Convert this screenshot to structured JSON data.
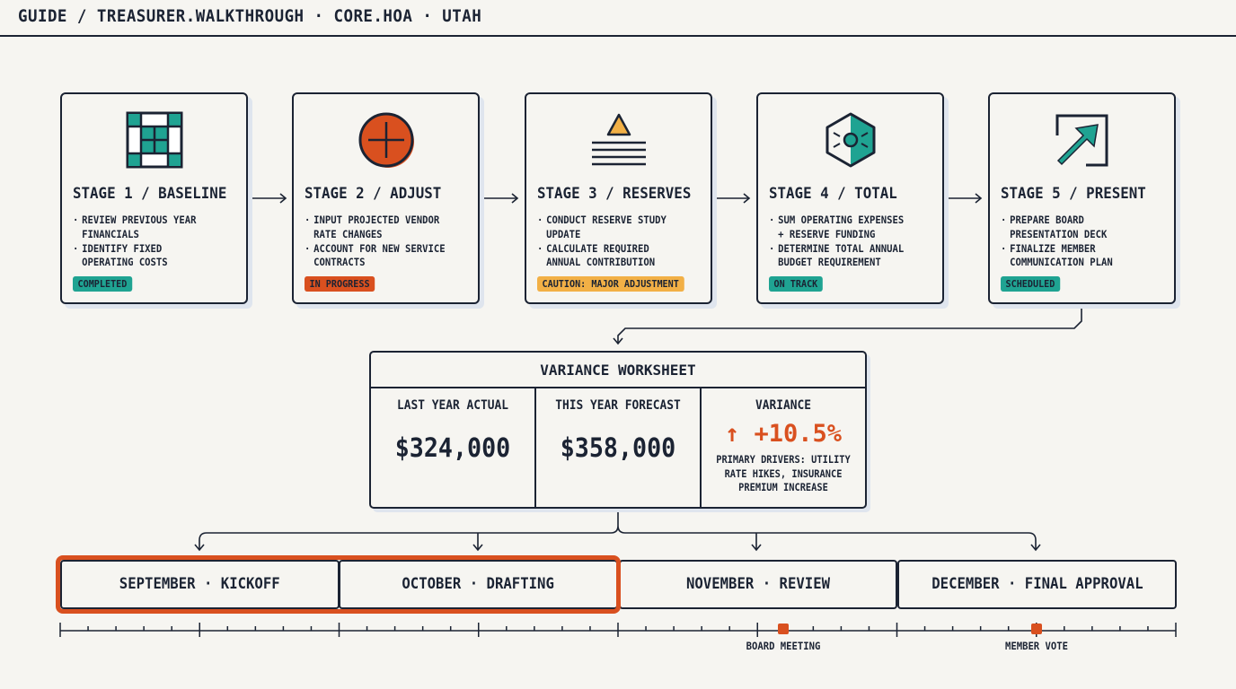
{
  "header": {
    "breadcrumb": "GUIDE / TREASURER.WALKTHROUGH · CORE.HOA · UTAH"
  },
  "colors": {
    "navy": "#1b2333",
    "teal": "#1fa392",
    "orange": "#d9501f",
    "amber": "#f2b046",
    "background": "#f6f5f1"
  },
  "stages": [
    {
      "title": "STAGE 1 / BASELINE",
      "icon": "grid-icon",
      "bullets": [
        "REVIEW PREVIOUS YEAR\nFINANCIALS",
        "IDENTIFY FIXED\nOPERATING COSTS"
      ],
      "status": "COMPLETED",
      "status_color": "#1fa392"
    },
    {
      "title": "STAGE 2 / ADJUST",
      "icon": "plus-circle-icon",
      "bullets": [
        "INPUT PROJECTED VENDOR\nRATE CHANGES",
        "ACCOUNT FOR NEW SERVICE\nCONTRACTS"
      ],
      "status": "IN PROGRESS",
      "status_color": "#d9501f"
    },
    {
      "title": "STAGE 3 / RESERVES",
      "icon": "warning-stack-icon",
      "bullets": [
        "CONDUCT RESERVE STUDY\nUPDATE",
        "CALCULATE REQUIRED\nANNUAL CONTRIBUTION"
      ],
      "status": "CAUTION: MAJOR ADJUSTMENT",
      "status_color": "#f2b046"
    },
    {
      "title": "STAGE 4 / TOTAL",
      "icon": "hexagon-icon",
      "bullets": [
        "SUM OPERATING EXPENSES\n+ RESERVE FUNDING",
        "DETERMINE TOTAL ANNUAL\nBUDGET REQUIREMENT"
      ],
      "status": "ON TRACK",
      "status_color": "#1fa392"
    },
    {
      "title": "STAGE 5 / PRESENT",
      "icon": "export-arrow-icon",
      "bullets": [
        "PREPARE BOARD\nPRESENTATION DECK",
        "FINALIZE MEMBER\nCOMMUNICATION PLAN"
      ],
      "status": "SCHEDULED",
      "status_color": "#1fa392"
    }
  ],
  "worksheet": {
    "title": "VARIANCE WORKSHEET",
    "last_year_label": "LAST YEAR ACTUAL",
    "last_year_value": "$324,000",
    "forecast_label": "THIS YEAR FORECAST",
    "forecast_value": "$358,000",
    "variance_label": "VARIANCE",
    "variance_value": "↑ +10.5%",
    "variance_note": "PRIMARY DRIVERS: UTILITY RATE HIKES, INSURANCE PREMIUM INCREASE"
  },
  "months": [
    {
      "label": "SEPTEMBER · KICKOFF",
      "highlighted": true
    },
    {
      "label": "OCTOBER · DRAFTING",
      "highlighted": true
    },
    {
      "label": "NOVEMBER · REVIEW",
      "highlighted": false
    },
    {
      "label": "DECEMBER · FINAL APPROVAL",
      "highlighted": false
    }
  ],
  "milestones": [
    {
      "label": "BOARD MEETING"
    },
    {
      "label": "MEMBER VOTE"
    }
  ]
}
